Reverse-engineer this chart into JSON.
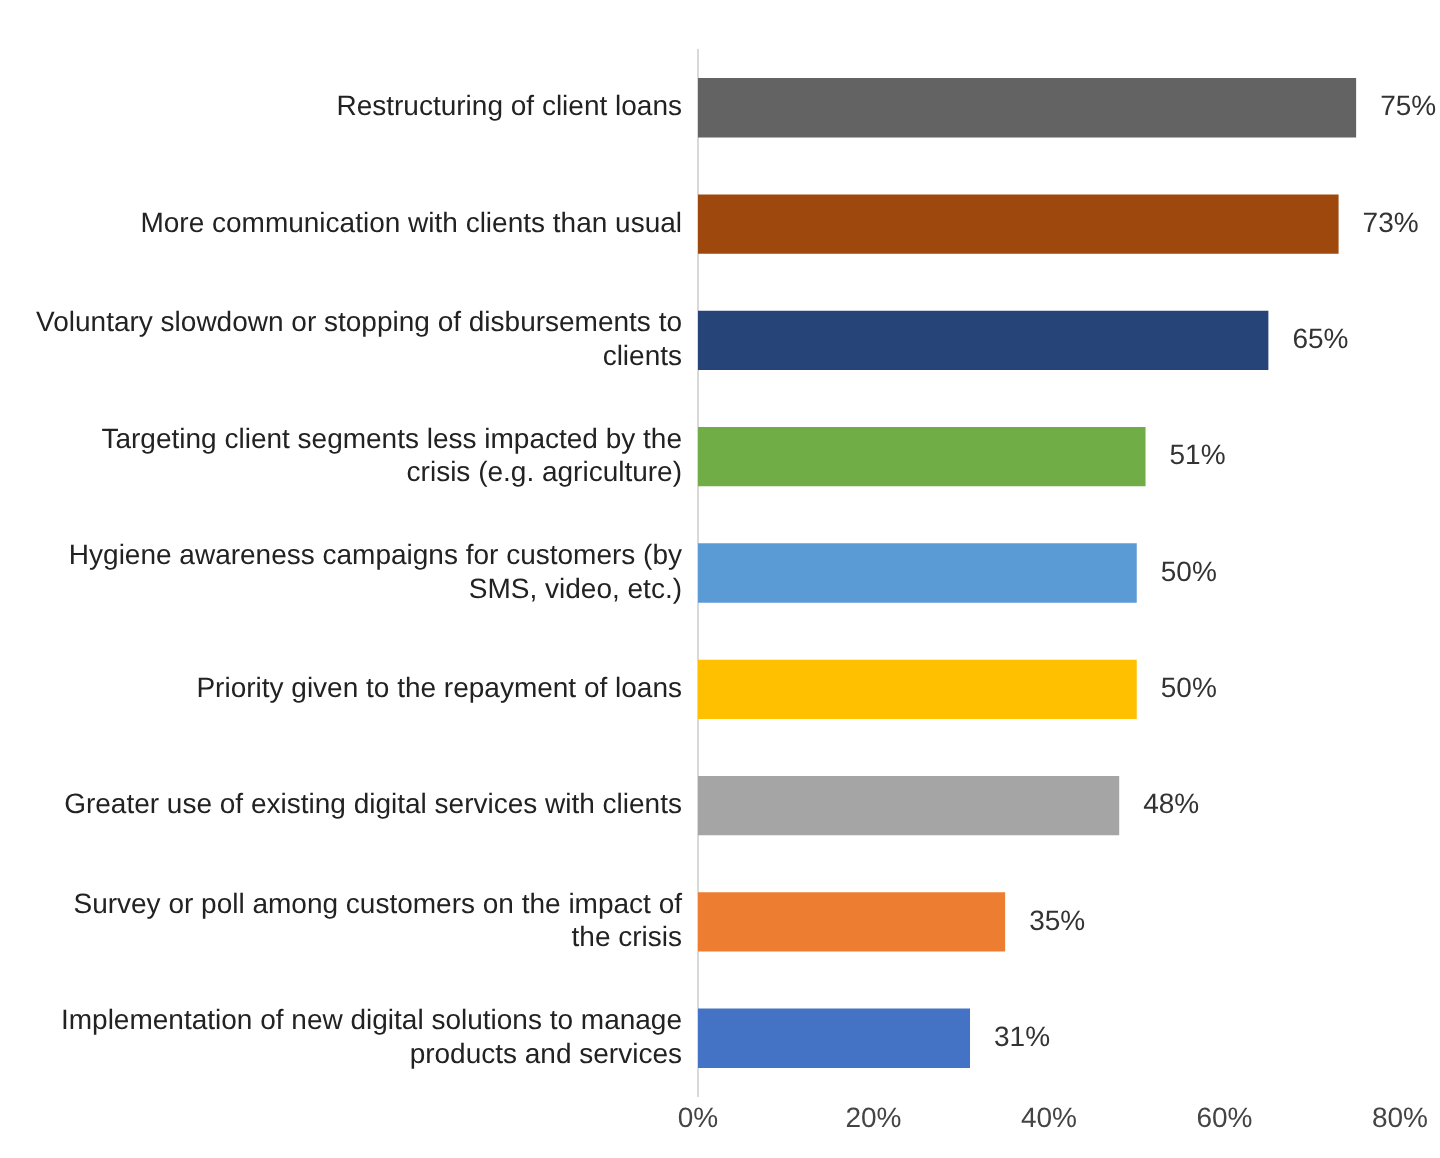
{
  "chart_data": {
    "type": "bar",
    "orientation": "horizontal",
    "categories": [
      "Restructuring of client loans",
      "More communication with clients than usual",
      "Voluntary slowdown or stopping of disbursements to clients",
      "Targeting client segments less impacted by the crisis (e.g. agriculture)",
      "Hygiene awareness campaigns for customers (by SMS, video, etc.)",
      "Priority given to the repayment of loans",
      "Greater use of existing digital services with clients",
      "Survey or poll among customers on the impact of the crisis",
      "Implementation of new digital solutions to manage products and services"
    ],
    "values": [
      75,
      73,
      65,
      51,
      50,
      50,
      48,
      35,
      31
    ],
    "value_labels": [
      "75%",
      "73%",
      "65%",
      "51%",
      "50%",
      "50%",
      "48%",
      "35%",
      "31%"
    ],
    "colors": [
      "#636363",
      "#9e480e",
      "#264478",
      "#70ad47",
      "#5b9bd5",
      "#ffc000",
      "#a5a5a5",
      "#ed7d31",
      "#4472c4"
    ],
    "xlim": [
      0,
      80
    ],
    "xticks": [
      {
        "value": 0,
        "label": "0%"
      },
      {
        "value": 20,
        "label": "20%"
      },
      {
        "value": 40,
        "label": "40%"
      },
      {
        "value": 60,
        "label": "60%"
      },
      {
        "value": 80,
        "label": "80%"
      }
    ],
    "grid": false,
    "legend": false
  }
}
